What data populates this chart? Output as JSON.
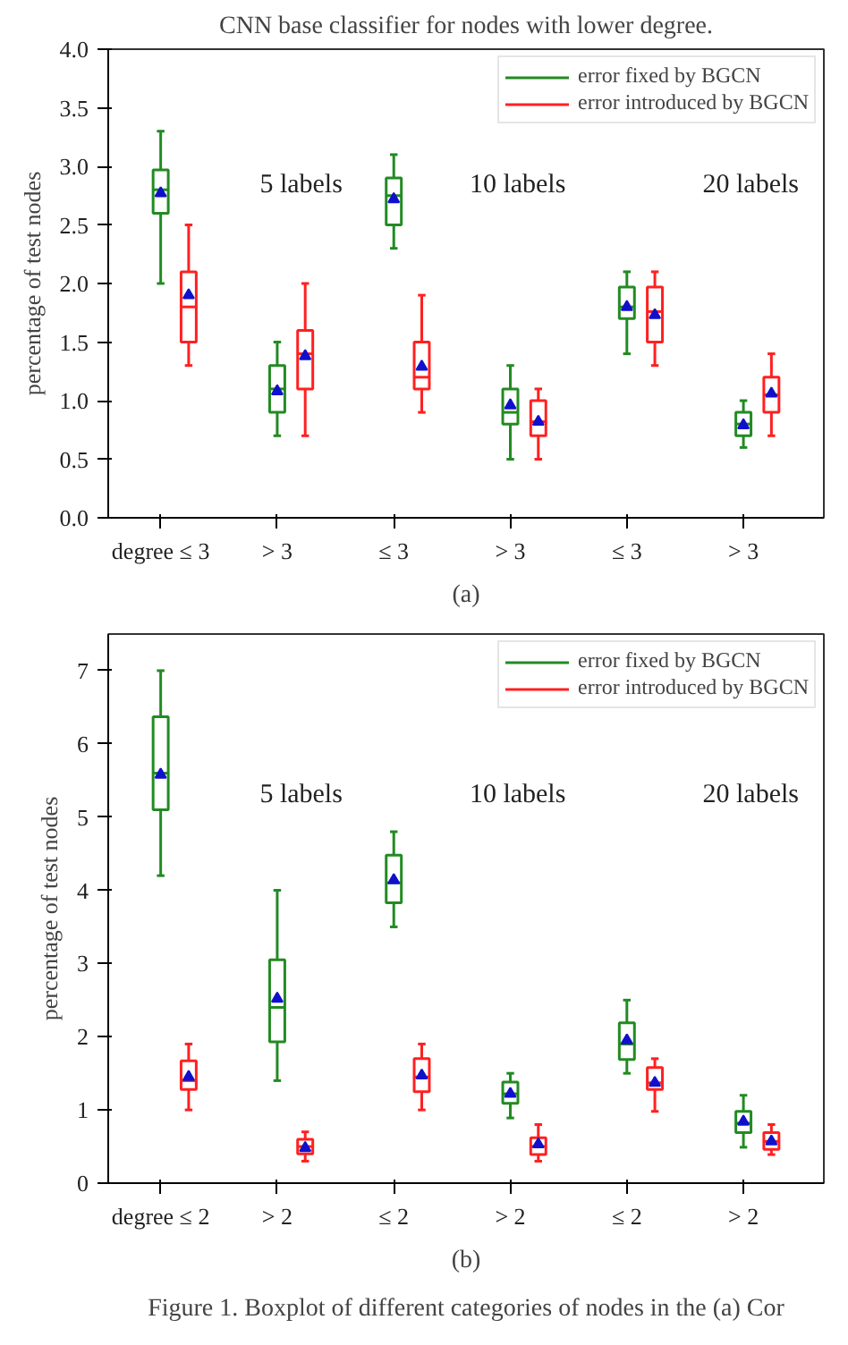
{
  "chart_data": [
    {
      "type": "box",
      "ylabel": "percentage of test nodes",
      "categories": [
        "degree ≤ 3",
        "> 3",
        "≤ 3",
        "> 3",
        "≤ 3",
        "> 3"
      ],
      "ylim": [
        0,
        4
      ],
      "yticks": [
        {
          "value": 0,
          "label": "0.0"
        },
        {
          "value": 0.5,
          "label": "0.5"
        },
        {
          "value": 1,
          "label": "1.0"
        },
        {
          "value": 1.5,
          "label": "1.5"
        },
        {
          "value": 2,
          "label": "2.0"
        },
        {
          "value": 2.5,
          "label": "2.5"
        },
        {
          "value": 3,
          "label": "3.0"
        },
        {
          "value": 3.5,
          "label": "3.5"
        },
        {
          "value": 4,
          "label": "4.0"
        }
      ],
      "legend": "top right",
      "grid": false,
      "annotations": [
        "CNN base classifier for nodes with lower degree.",
        "5 labels",
        "10 labels",
        "20 labels",
        "(a)"
      ],
      "series": [
        {
          "name": "error fixed by BGCN",
          "color": "#228b22",
          "boxes": [
            {
              "low": 2.0,
              "q1": 2.6,
              "median": 2.8,
              "q3": 2.97,
              "high": 3.3,
              "mean": 2.77
            },
            {
              "low": 0.7,
              "q1": 0.9,
              "median": 1.1,
              "q3": 1.3,
              "high": 1.5,
              "mean": 1.08
            },
            {
              "low": 2.3,
              "q1": 2.5,
              "median": 2.75,
              "q3": 2.9,
              "high": 3.1,
              "mean": 2.72
            },
            {
              "low": 0.5,
              "q1": 0.8,
              "median": 0.9,
              "q3": 1.1,
              "high": 1.3,
              "mean": 0.96
            },
            {
              "low": 1.4,
              "q1": 1.7,
              "median": 1.8,
              "q3": 1.97,
              "high": 2.1,
              "mean": 1.8
            },
            {
              "low": 0.6,
              "q1": 0.7,
              "median": 0.8,
              "q3": 0.9,
              "high": 1.0,
              "mean": 0.79
            }
          ]
        },
        {
          "name": "error introduced by BGCN",
          "color": "#ff2020",
          "boxes": [
            {
              "low": 1.3,
              "q1": 1.5,
              "median": 1.8,
              "q3": 2.1,
              "high": 2.5,
              "mean": 1.9
            },
            {
              "low": 0.7,
              "q1": 1.1,
              "median": 1.4,
              "q3": 1.6,
              "high": 2.0,
              "mean": 1.38
            },
            {
              "low": 0.9,
              "q1": 1.1,
              "median": 1.2,
              "q3": 1.5,
              "high": 1.9,
              "mean": 1.29
            },
            {
              "low": 0.5,
              "q1": 0.7,
              "median": 0.82,
              "q3": 1.0,
              "high": 1.1,
              "mean": 0.82
            },
            {
              "low": 1.3,
              "q1": 1.5,
              "median": 1.76,
              "q3": 1.97,
              "high": 2.1,
              "mean": 1.73
            },
            {
              "low": 0.7,
              "q1": 0.9,
              "median": 1.05,
              "q3": 1.2,
              "high": 1.4,
              "mean": 1.06
            }
          ]
        }
      ]
    },
    {
      "type": "box",
      "ylabel": "percentage of test nodes",
      "categories": [
        "degree ≤ 2",
        "> 2",
        "≤ 2",
        "> 2",
        "≤ 2",
        "> 2"
      ],
      "ylim": [
        0,
        7.5
      ],
      "yticks": [
        0,
        1,
        2,
        3,
        4,
        5,
        6,
        7
      ],
      "legend": "top right",
      "grid": false,
      "annotations": [
        "5 labels",
        "10 labels",
        "20 labels",
        "(b)",
        "Figure 1. Boxplot of different categories of nodes in the (a) Cor"
      ],
      "series": [
        {
          "name": "error fixed by BGCN",
          "color": "#228b22",
          "boxes": [
            {
              "low": 4.2,
              "q1": 5.1,
              "median": 5.6,
              "q3": 6.37,
              "high": 7.0,
              "mean": 5.58
            },
            {
              "low": 1.4,
              "q1": 1.93,
              "median": 2.4,
              "q3": 3.05,
              "high": 4.0,
              "mean": 2.52
            },
            {
              "low": 3.5,
              "q1": 3.83,
              "median": 4.1,
              "q3": 4.48,
              "high": 4.8,
              "mean": 4.14
            },
            {
              "low": 0.89,
              "q1": 1.09,
              "median": 1.22,
              "q3": 1.38,
              "high": 1.5,
              "mean": 1.22
            },
            {
              "low": 1.5,
              "q1": 1.69,
              "median": 1.9,
              "q3": 2.19,
              "high": 2.5,
              "mean": 1.95
            },
            {
              "low": 0.49,
              "q1": 0.69,
              "median": 0.82,
              "q3": 0.98,
              "high": 1.2,
              "mean": 0.84
            }
          ]
        },
        {
          "name": "error introduced by BGCN",
          "color": "#ff2020",
          "boxes": [
            {
              "low": 1.0,
              "q1": 1.28,
              "median": 1.4,
              "q3": 1.67,
              "high": 1.9,
              "mean": 1.45
            },
            {
              "low": 0.3,
              "q1": 0.4,
              "median": 0.5,
              "q3": 0.6,
              "high": 0.7,
              "mean": 0.48
            },
            {
              "low": 1.0,
              "q1": 1.25,
              "median": 1.45,
              "q3": 1.7,
              "high": 1.9,
              "mean": 1.47
            },
            {
              "low": 0.3,
              "q1": 0.39,
              "median": 0.5,
              "q3": 0.62,
              "high": 0.8,
              "mean": 0.53
            },
            {
              "low": 0.98,
              "q1": 1.28,
              "median": 1.37,
              "q3": 1.58,
              "high": 1.7,
              "mean": 1.37
            },
            {
              "low": 0.39,
              "q1": 0.46,
              "median": 0.57,
              "q3": 0.69,
              "high": 0.8,
              "mean": 0.57
            }
          ]
        }
      ]
    }
  ]
}
